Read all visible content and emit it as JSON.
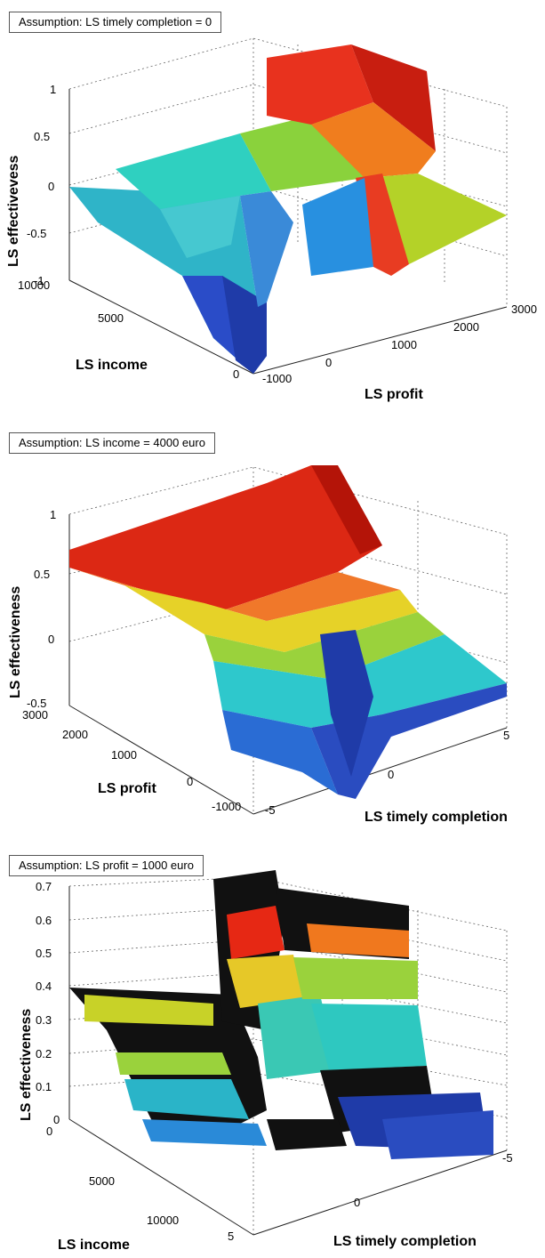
{
  "chart_data": [
    {
      "type": "surface",
      "assumption": "Assumption: LS timely completion = 0",
      "zlabel": "LS effectivevess",
      "xlabel": "LS income",
      "ylabel": "LS profit",
      "zticks": [
        "-1",
        "-0.5",
        "0",
        "0.5",
        "1"
      ],
      "xticks": [
        "0",
        "5000",
        "10000"
      ],
      "yticks": [
        "-1000",
        "0",
        "1000",
        "2000",
        "3000"
      ],
      "zlim": [
        -1,
        1
      ],
      "xlim": [
        0,
        10000
      ],
      "ylim": [
        -1000,
        3000
      ],
      "grid": true,
      "colormap": "jet"
    },
    {
      "type": "surface",
      "assumption": "Assumption: LS income = 4000 euro",
      "zlabel": "LS effectiveness",
      "xlabel": "LS profit",
      "ylabel": "LS timely completion",
      "zticks": [
        "-0.5",
        "0",
        "0.5",
        "1"
      ],
      "xticks": [
        "-1000",
        "0",
        "1000",
        "2000",
        "3000"
      ],
      "yticks": [
        "-5",
        "0",
        "5"
      ],
      "zlim": [
        -0.5,
        1
      ],
      "xlim": [
        -1000,
        3000
      ],
      "ylim": [
        -5,
        5
      ],
      "grid": true,
      "colormap": "jet"
    },
    {
      "type": "surface",
      "assumption": "Assumption: LS profit = 1000 euro",
      "zlabel": "LS effectiveness",
      "xlabel": "LS income",
      "ylabel": "LS timely completion",
      "zticks": [
        "0",
        "0.1",
        "0.2",
        "0.3",
        "0.4",
        "0.5",
        "0.6",
        "0.7"
      ],
      "xticks": [
        "0",
        "5000",
        "10000"
      ],
      "yticks": [
        "5",
        "0",
        "-5"
      ],
      "zlim": [
        0,
        0.7
      ],
      "xlim": [
        0,
        10000
      ],
      "ylim": [
        -5,
        5
      ],
      "grid": true,
      "colormap": "jet"
    }
  ]
}
